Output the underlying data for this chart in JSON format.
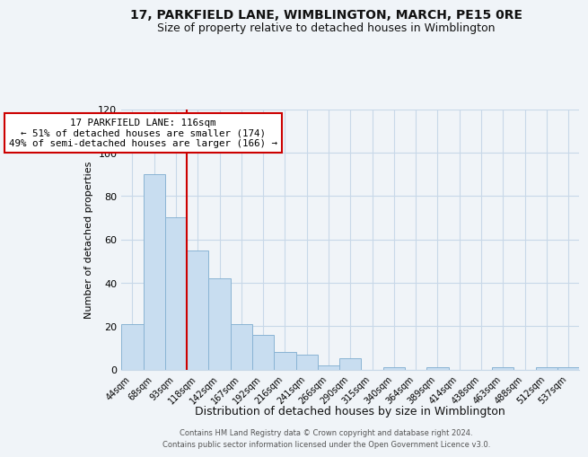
{
  "title": "17, PARKFIELD LANE, WIMBLINGTON, MARCH, PE15 0RE",
  "subtitle": "Size of property relative to detached houses in Wimblington",
  "xlabel": "Distribution of detached houses by size in Wimblington",
  "ylabel": "Number of detached properties",
  "bar_labels": [
    "44sqm",
    "68sqm",
    "93sqm",
    "118sqm",
    "142sqm",
    "167sqm",
    "192sqm",
    "216sqm",
    "241sqm",
    "266sqm",
    "290sqm",
    "315sqm",
    "340sqm",
    "364sqm",
    "389sqm",
    "414sqm",
    "438sqm",
    "463sqm",
    "488sqm",
    "512sqm",
    "537sqm"
  ],
  "bar_values": [
    21,
    90,
    70,
    55,
    42,
    21,
    16,
    8,
    7,
    2,
    5,
    0,
    1,
    0,
    1,
    0,
    0,
    1,
    0,
    1,
    1
  ],
  "bar_color": "#c8ddf0",
  "bar_edge_color": "#8ab4d4",
  "vline_color": "#cc0000",
  "annotation_text": "17 PARKFIELD LANE: 116sqm\n← 51% of detached houses are smaller (174)\n49% of semi-detached houses are larger (166) →",
  "annotation_box_color": "#ffffff",
  "annotation_box_edge": "#cc0000",
  "ylim": [
    0,
    120
  ],
  "yticks": [
    0,
    20,
    40,
    60,
    80,
    100,
    120
  ],
  "footer": "Contains HM Land Registry data © Crown copyright and database right 2024.\nContains public sector information licensed under the Open Government Licence v3.0.",
  "bg_color": "#f0f4f8",
  "grid_color": "#c8d8e8",
  "title_fontsize": 10,
  "subtitle_fontsize": 9
}
